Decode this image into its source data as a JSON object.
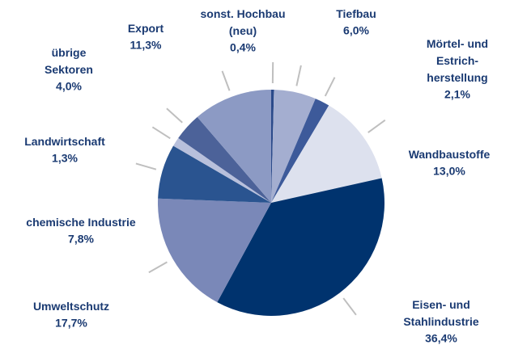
{
  "chart_data": {
    "type": "pie",
    "categories": [
      "sonst. Hochbau\n(neu)",
      "Tiefbau",
      "Mörtel- und\nEstrich-\nherstellung",
      "Wandbaustoffe",
      "Eisen- und\nStahlindustrie",
      "Umweltschutz",
      "chemische Industrie",
      "Landwirtschaft",
      "übrige\nSektoren",
      "Export"
    ],
    "values": [
      0.4,
      6.0,
      2.1,
      13.0,
      36.4,
      17.7,
      7.8,
      1.3,
      4.0,
      11.3
    ],
    "value_labels": [
      "0,4%",
      "6,0%",
      "2,1%",
      "13,0%",
      "36,4%",
      "17,7%",
      "7,8%",
      "1,3%",
      "4,0%",
      "11,3%"
    ],
    "colors": [
      "#2b4a8a",
      "#a4aed0",
      "#3d5a9a",
      "#dde1ee",
      "#00336e",
      "#7a88b8",
      "#2a5490",
      "#b8c0dc",
      "#4c6299",
      "#8c9ac4"
    ]
  }
}
